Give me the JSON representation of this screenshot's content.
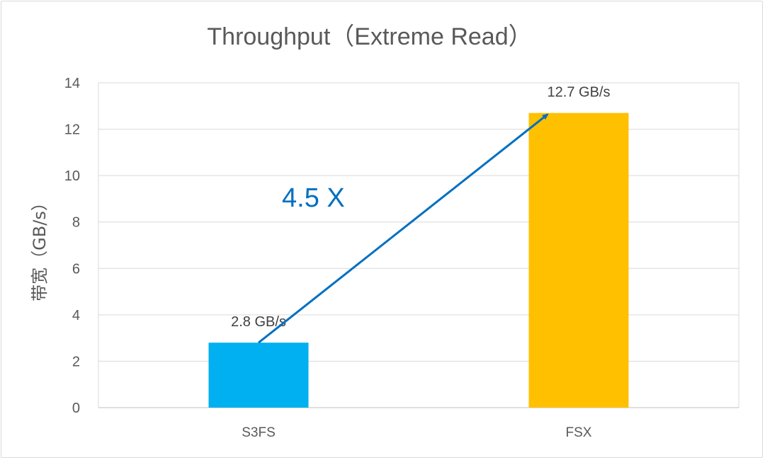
{
  "chart_data": {
    "type": "bar",
    "title": "Throughput（Extreme Read）",
    "ylabel": "带宽（GB/s）",
    "xlabel": "",
    "categories": [
      "S3FS",
      "FSX"
    ],
    "values": [
      2.8,
      12.7
    ],
    "data_labels": [
      "2.8 GB/s",
      "12.7 GB/s"
    ],
    "colors": [
      "#00b0f0",
      "#ffc000"
    ],
    "ylim": [
      0,
      14
    ],
    "yticks": [
      0,
      2,
      4,
      6,
      8,
      10,
      12,
      14
    ],
    "grid": true,
    "legend": "none",
    "annotations": [
      {
        "text": "4.5 X",
        "color": "#0070c0",
        "arrow_from": {
          "category": "S3FS",
          "value": 2.8
        },
        "arrow_to": {
          "category": "FSX",
          "value": 12.7
        }
      }
    ]
  }
}
